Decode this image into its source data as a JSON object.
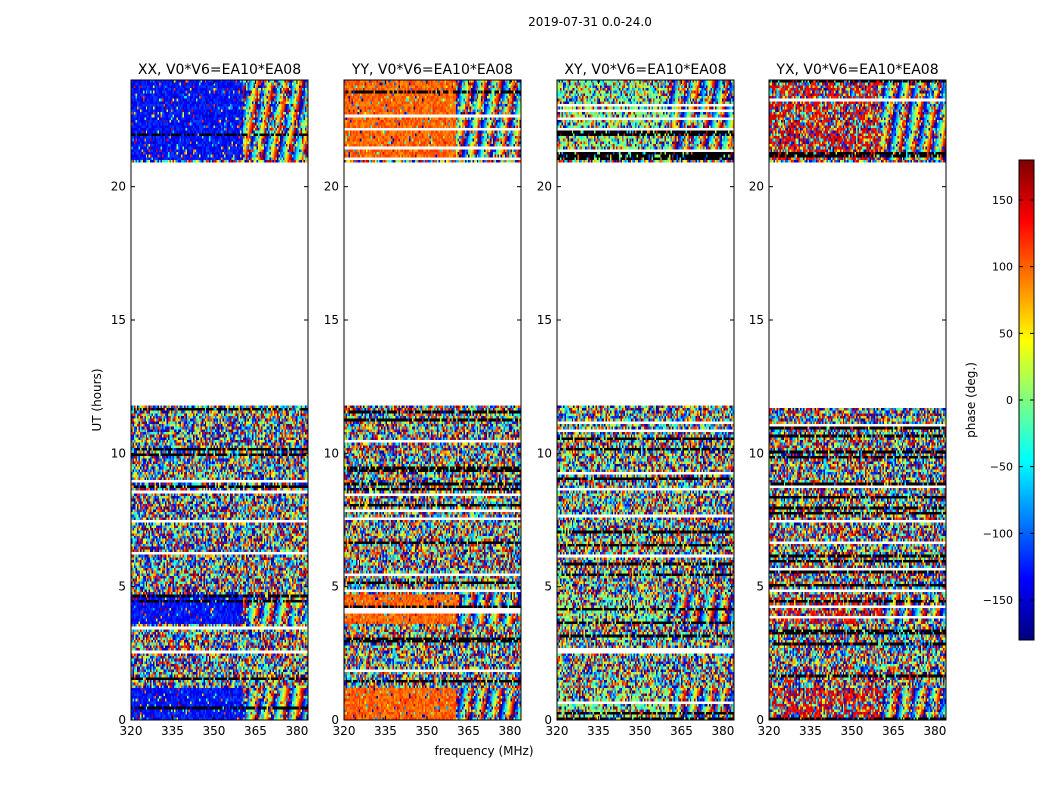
{
  "chart_data": {
    "type": "heatmap",
    "suptitle": "2019-07-31 0.0-24.0",
    "xlabel": "frequency (MHz)",
    "ylabel": "UT (hours)",
    "xlim": [
      320,
      384
    ],
    "ylim": [
      0,
      24
    ],
    "xticks": [
      "320",
      "335",
      "350",
      "365",
      "380"
    ],
    "xtick_values": [
      320,
      335,
      350,
      365,
      380
    ],
    "yticks": [
      "0",
      "5",
      "10",
      "15",
      "20"
    ],
    "ytick_values": [
      0,
      5,
      10,
      15,
      20
    ],
    "colorbar": {
      "label": "phase (deg.)",
      "range": [
        -180,
        180
      ],
      "ticks": [
        "150",
        "100",
        "50",
        "0",
        "−50",
        "−100",
        "−150"
      ],
      "tick_values": [
        150,
        100,
        50,
        0,
        -50,
        -100,
        -150
      ]
    },
    "data_coverage_hours": [
      [
        0.0,
        11.8
      ],
      [
        20.9,
        24.0
      ]
    ],
    "panels": [
      {
        "title": "XX, V0*V6=EA10*EA08",
        "mean_phase_deg": -130,
        "coherence": 0.9
      },
      {
        "title": "YY, V0*V6=EA10*EA08",
        "mean_phase_deg": 100,
        "coherence": 0.9
      },
      {
        "title": "XY, V0*V6=EA10*EA08",
        "mean_phase_deg": 0,
        "coherence": 0.35
      },
      {
        "title": "YX, V0*V6=EA10*EA08",
        "mean_phase_deg": 140,
        "coherence": 0.4
      }
    ]
  }
}
